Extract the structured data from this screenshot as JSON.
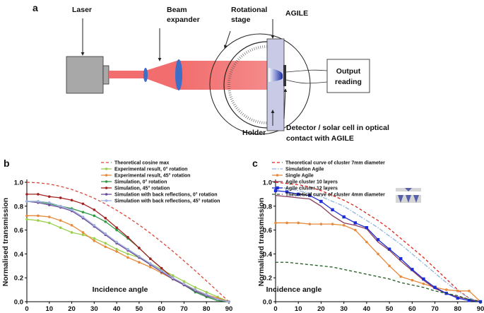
{
  "diagram": {
    "panel_label": "a",
    "laser": "Laser",
    "beam_expander": [
      "Beam",
      "expander"
    ],
    "rotational_stage": [
      "Rotational",
      "stage"
    ],
    "agile": "AGILE",
    "output": [
      "Output",
      "reading"
    ],
    "holder": "Holder",
    "detector": [
      "Detector / solar cell in optical",
      "contact with AGILE"
    ]
  },
  "chart_data": [
    {
      "type": "line",
      "panel_label": "b",
      "y_label": "Normalised transmission",
      "x_label": "Incidence angle",
      "x": [
        0,
        5,
        10,
        15,
        20,
        25,
        30,
        35,
        40,
        45,
        50,
        55,
        60,
        65,
        70,
        75,
        80,
        85,
        90
      ],
      "xlim": [
        0,
        90
      ],
      "xticks": [
        0,
        10,
        20,
        30,
        40,
        50,
        60,
        70,
        80,
        90
      ],
      "ylim": [
        0,
        1
      ],
      "yticks": [
        {
          "value": 0,
          "label": "0.0"
        },
        0.2,
        0.4,
        0.6,
        0.8,
        {
          "value": 1,
          "label": "1.0"
        }
      ],
      "legend": "top-right",
      "series": [
        {
          "name": "Theoretical cosine max",
          "color": "#d9473a",
          "dash": "dashed",
          "marker": "none",
          "values": [
            1,
            0.996,
            0.985,
            0.966,
            0.94,
            0.906,
            0.866,
            0.819,
            0.766,
            0.707,
            0.643,
            0.574,
            0.5,
            0.423,
            0.342,
            0.259,
            0.174,
            0.087,
            0
          ]
        },
        {
          "name": "Experimental result, 0° rotation",
          "color": "#9bd04f",
          "dash": "solid",
          "marker": "circle",
          "values": [
            0.69,
            0.68,
            0.66,
            0.62,
            0.58,
            0.56,
            0.53,
            0.49,
            0.44,
            0.4,
            0.37,
            0.32,
            0.27,
            0.22,
            0.17,
            0.12,
            0.08,
            0.04,
            0
          ]
        },
        {
          "name": "Experimental result, 45° rotation",
          "color": "#e8893a",
          "dash": "solid",
          "marker": "circle",
          "values": [
            0.72,
            0.72,
            0.71,
            0.68,
            0.64,
            0.58,
            0.51,
            0.46,
            0.42,
            0.37,
            0.33,
            0.29,
            0.24,
            0.19,
            0.14,
            0.1,
            0.06,
            0.03,
            0
          ]
        },
        {
          "name": "Simulation, 0° rotation",
          "color": "#2f9a45",
          "dash": "solid",
          "marker": "circle",
          "values": [
            0.84,
            0.84,
            0.82,
            0.8,
            0.78,
            0.75,
            0.72,
            0.67,
            0.6,
            0.53,
            0.45,
            0.36,
            0.28,
            0.2,
            0.14,
            0.08,
            0.04,
            0.01,
            0
          ]
        },
        {
          "name": "Simulation, 45° rotation",
          "color": "#a32121",
          "dash": "solid",
          "marker": "circle",
          "values": [
            0.9,
            0.9,
            0.88,
            0.87,
            0.85,
            0.82,
            0.77,
            0.7,
            0.62,
            0.54,
            0.45,
            0.36,
            0.28,
            0.2,
            0.14,
            0.09,
            0.05,
            0.02,
            0
          ]
        },
        {
          "name": "Simulation with back reflections, 0° rotation",
          "color": "#6a4c9c",
          "dash": "solid",
          "marker": "circle",
          "values": [
            0.84,
            0.83,
            0.81,
            0.79,
            0.76,
            0.7,
            0.63,
            0.56,
            0.49,
            0.43,
            0.37,
            0.31,
            0.25,
            0.19,
            0.14,
            0.09,
            0.05,
            0.02,
            0
          ]
        },
        {
          "name": "Simulation with back reflections, 45° rotation",
          "color": "#9fb0dc",
          "dash": "solid",
          "marker": "circle",
          "values": [
            0.84,
            0.84,
            0.83,
            0.8,
            0.77,
            0.71,
            0.64,
            0.57,
            0.5,
            0.44,
            0.38,
            0.32,
            0.26,
            0.2,
            0.15,
            0.1,
            0.06,
            0.02,
            0
          ]
        }
      ]
    },
    {
      "type": "line",
      "panel_label": "c",
      "y_label": "Normalised transmission",
      "x_label": "Incidence angle",
      "x": [
        0,
        5,
        10,
        15,
        20,
        25,
        30,
        35,
        40,
        45,
        50,
        55,
        60,
        65,
        70,
        75,
        80,
        85,
        90
      ],
      "xlim": [
        0,
        90
      ],
      "xticks": [
        0,
        10,
        20,
        30,
        40,
        50,
        60,
        70,
        80,
        90
      ],
      "ylim": [
        0,
        1
      ],
      "yticks": [
        {
          "value": 0,
          "label": "0.0"
        },
        0.2,
        0.4,
        0.6,
        0.8,
        {
          "value": 1,
          "label": "1.0"
        }
      ],
      "legend": "top-right",
      "series": [
        {
          "name": "Theoretical curve of cluster 7mm diameter",
          "color": "#e0231c",
          "dash": "dashed",
          "marker": "none",
          "values": [
            1,
            0.99,
            0.98,
            0.96,
            0.93,
            0.89,
            0.85,
            0.8,
            0.74,
            0.68,
            0.61,
            0.53,
            0.45,
            0.37,
            0.28,
            0.19,
            0.1,
            0.03,
            0
          ]
        },
        {
          "name": "Simulation Agile",
          "color": "#8fb4e0",
          "dash": "dashdot",
          "marker": "none",
          "values": [
            0.96,
            0.95,
            0.93,
            0.91,
            0.88,
            0.84,
            0.8,
            0.74,
            0.68,
            0.62,
            0.55,
            0.48,
            0.4,
            0.32,
            0.24,
            0.16,
            0.09,
            0.03,
            0
          ]
        },
        {
          "name": "Single Agile",
          "color": "#e8893a",
          "dash": "solid",
          "marker": "circle",
          "values": [
            0.66,
            0.66,
            0.66,
            0.65,
            0.65,
            0.65,
            0.64,
            0.6,
            0.5,
            0.4,
            0.3,
            0.21,
            0.18,
            0.15,
            0.12,
            0.1,
            0.09,
            0.09,
            0
          ]
        },
        {
          "name": "Agile cluster 10 layers",
          "color": "#8a3b5a",
          "dash": "solid",
          "marker": "none",
          "values": [
            0.89,
            0.88,
            0.87,
            0.86,
            0.8,
            0.72,
            0.66,
            0.64,
            0.61,
            0.5,
            0.43,
            0.34,
            0.26,
            0.18,
            0.11,
            0.07,
            0.04,
            0.02,
            0
          ]
        },
        {
          "name": "Agile cluster 12 layers",
          "color": "#1d2bd6",
          "dash": "solid",
          "marker": "square",
          "values": [
            0.93,
            0.92,
            0.9,
            0.89,
            0.84,
            0.77,
            0.71,
            0.66,
            0.62,
            0.52,
            0.44,
            0.36,
            0.27,
            0.19,
            0.12,
            0.07,
            0.03,
            0.01,
            0
          ]
        },
        {
          "name": "Theoretical curve of cluster 4mm diameter",
          "color": "#1f5a1f",
          "dash": "dashed",
          "marker": "none",
          "values": [
            0.33,
            0.33,
            0.32,
            0.31,
            0.3,
            0.29,
            0.27,
            0.25,
            0.23,
            0.21,
            0.19,
            0.16,
            0.14,
            0.12,
            0.09,
            0.07,
            0.05,
            0.02,
            0
          ]
        }
      ]
    }
  ]
}
